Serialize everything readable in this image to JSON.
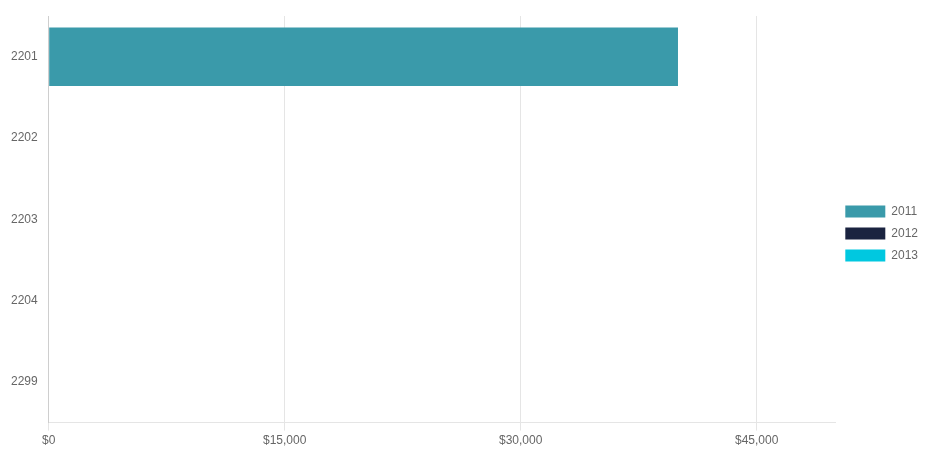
{
  "chart_data": {
    "type": "bar",
    "orientation": "horizontal",
    "stacked": true,
    "categories": [
      "2201",
      "2202",
      "2203",
      "2204",
      "2299"
    ],
    "series": [
      {
        "name": "2011",
        "color": "#3a9aaa",
        "values": [
          40000,
          0,
          0,
          0,
          0
        ]
      },
      {
        "name": "2012",
        "color": "#1a2340",
        "values": [
          0,
          0,
          0,
          0,
          0
        ]
      },
      {
        "name": "2013",
        "color": "#00c8e0",
        "values": [
          0,
          0,
          0,
          0,
          0
        ]
      }
    ],
    "xlim": [
      0,
      50000
    ],
    "xticks": [
      {
        "value": 0,
        "label": "$0"
      },
      {
        "value": 15000,
        "label": "$15,000"
      },
      {
        "value": 30000,
        "label": "$30,000"
      },
      {
        "value": 45000,
        "label": "$45,000"
      }
    ],
    "grid": true,
    "legend": "right"
  }
}
